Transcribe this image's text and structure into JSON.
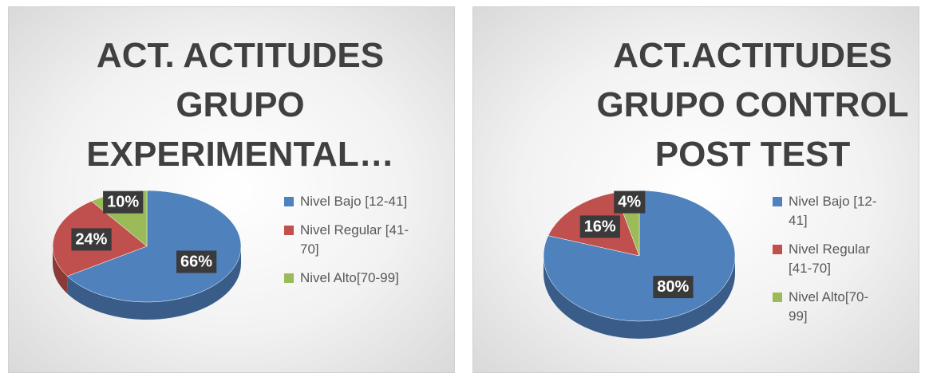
{
  "chart_data": [
    {
      "type": "pie",
      "title": "ACT. ACTITUDES GRUPO EXPERIMENTAL…",
      "categories": [
        "Nivel Bajo [12-41]",
        "Nivel Regular [41-70]",
        "Nivel Alto[70-99]"
      ],
      "values": [
        66,
        24,
        10
      ],
      "value_labels": [
        "66%",
        "24%",
        "10%"
      ],
      "colors": [
        "#4f81bd",
        "#c0504d",
        "#9bbb59"
      ],
      "legend": "right"
    },
    {
      "type": "pie",
      "title": "ACT.ACTITUDES GRUPO CONTROL POST TEST",
      "categories": [
        "Nivel Bajo [12-41]",
        "Nivel Regular [41-70]",
        "Nivel Alto[70-99]"
      ],
      "values": [
        80,
        16,
        4
      ],
      "value_labels": [
        "80%",
        "16%",
        "4%"
      ],
      "colors": [
        "#4f81bd",
        "#c0504d",
        "#9bbb59"
      ],
      "legend": "right"
    }
  ]
}
